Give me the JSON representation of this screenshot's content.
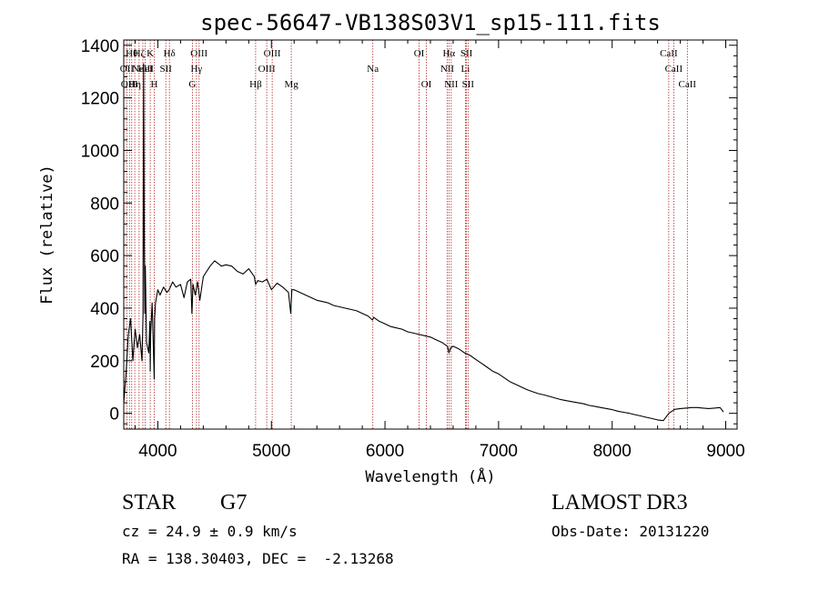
{
  "chart_data": {
    "type": "line",
    "title": "spec-56647-VB138S03V1_sp15-111.fits",
    "xlabel": "Wavelength (Å)",
    "ylabel": "Flux (relative)",
    "xlim": [
      3700,
      9100
    ],
    "ylim": [
      -60,
      1420
    ],
    "xticks": [
      4000,
      5000,
      6000,
      7000,
      8000,
      9000
    ],
    "xtick_labels": [
      "4000",
      "5000",
      "6000",
      "7000",
      "8000",
      "9000"
    ],
    "yticks": [
      0,
      200,
      400,
      600,
      800,
      1000,
      1200,
      1400
    ],
    "ytick_labels": [
      "0",
      "200",
      "400",
      "600",
      "800",
      "1000",
      "1200",
      "1400"
    ],
    "series": [
      {
        "name": "flux",
        "x": [
          3700,
          3720,
          3740,
          3760,
          3780,
          3800,
          3820,
          3840,
          3860,
          3870,
          3875,
          3880,
          3885,
          3890,
          3900,
          3920,
          3930,
          3933,
          3936,
          3950,
          3968,
          3972,
          3980,
          4000,
          4020,
          4050,
          4080,
          4100,
          4130,
          4160,
          4200,
          4230,
          4260,
          4290,
          4300,
          4310,
          4330,
          4350,
          4370,
          4400,
          4430,
          4460,
          4500,
          4530,
          4560,
          4600,
          4650,
          4700,
          4750,
          4800,
          4850,
          4861,
          4880,
          4920,
          4960,
          5000,
          5050,
          5100,
          5150,
          5170,
          5180,
          5200,
          5250,
          5300,
          5350,
          5400,
          5450,
          5500,
          5550,
          5600,
          5650,
          5700,
          5750,
          5800,
          5850,
          5890,
          5900,
          5950,
          6000,
          6050,
          6100,
          6150,
          6200,
          6250,
          6300,
          6350,
          6400,
          6450,
          6500,
          6550,
          6563,
          6580,
          6600,
          6650,
          6700,
          6750,
          6800,
          6850,
          6900,
          6950,
          7000,
          7050,
          7100,
          7150,
          7200,
          7250,
          7300,
          7350,
          7400,
          7450,
          7500,
          7550,
          7600,
          7650,
          7700,
          7750,
          7800,
          7850,
          7900,
          7950,
          8000,
          8050,
          8100,
          8150,
          8200,
          8250,
          8300,
          8350,
          8400,
          8450,
          8500,
          8550,
          8600,
          8650,
          8700,
          8750,
          8800,
          8850,
          8900,
          8950,
          8980
        ],
        "values": [
          40,
          150,
          300,
          360,
          200,
          320,
          250,
          300,
          200,
          380,
          1330,
          700,
          380,
          560,
          270,
          230,
          350,
          160,
          300,
          420,
          130,
          360,
          420,
          470,
          450,
          480,
          460,
          470,
          500,
          480,
          490,
          440,
          500,
          510,
          380,
          490,
          450,
          500,
          430,
          520,
          540,
          560,
          580,
          570,
          560,
          565,
          560,
          540,
          530,
          550,
          520,
          490,
          505,
          500,
          510,
          470,
          495,
          480,
          460,
          380,
          470,
          470,
          460,
          450,
          440,
          430,
          425,
          420,
          410,
          405,
          400,
          395,
          390,
          380,
          370,
          355,
          365,
          350,
          340,
          330,
          325,
          320,
          310,
          305,
          300,
          295,
          290,
          280,
          270,
          255,
          230,
          250,
          255,
          245,
          230,
          220,
          205,
          190,
          175,
          160,
          150,
          135,
          120,
          110,
          100,
          90,
          82,
          75,
          70,
          64,
          58,
          52,
          48,
          44,
          40,
          36,
          30,
          26,
          22,
          18,
          14,
          8,
          4,
          0,
          -5,
          -10,
          -15,
          -20,
          -25,
          -28,
          0,
          15,
          18,
          20,
          22,
          22,
          20,
          18,
          20,
          22,
          5
        ]
      }
    ],
    "lines": [
      {
        "wl": 3727,
        "label": "OII",
        "row": 1
      },
      {
        "wl": 3750,
        "label": "OIII",
        "row": 2
      },
      {
        "wl": 3770,
        "label": "Hθ",
        "row": 0
      },
      {
        "wl": 3797,
        "label": "Hη",
        "row": 2
      },
      {
        "wl": 3835,
        "label": "Hζ",
        "row": 0
      },
      {
        "wl": 3868,
        "label": "NeIII",
        "row": 1
      },
      {
        "wl": 3889,
        "label": "HeI",
        "row": 1
      },
      {
        "wl": 3933,
        "label": "K",
        "row": 0
      },
      {
        "wl": 3968,
        "label": "H",
        "row": 2
      },
      {
        "wl": 4070,
        "label": "SII",
        "row": 1
      },
      {
        "wl": 4102,
        "label": "Hδ",
        "row": 0
      },
      {
        "wl": 4304,
        "label": "G",
        "row": 2
      },
      {
        "wl": 4340,
        "label": "Hγ",
        "row": 1
      },
      {
        "wl": 4363,
        "label": "OIII",
        "row": 0
      },
      {
        "wl": 4861,
        "label": "Hβ",
        "row": 2
      },
      {
        "wl": 4959,
        "label": "OIII",
        "row": 1
      },
      {
        "wl": 5007,
        "label": "OIII",
        "row": 0
      },
      {
        "wl": 5175,
        "label": "Mg",
        "row": 2
      },
      {
        "wl": 5893,
        "label": "Na",
        "row": 1
      },
      {
        "wl": 6300,
        "label": "OI",
        "row": 0
      },
      {
        "wl": 6364,
        "label": "OI",
        "row": 2
      },
      {
        "wl": 6548,
        "label": "NII",
        "row": 1
      },
      {
        "wl": 6563,
        "label": "Hα",
        "row": 0
      },
      {
        "wl": 6583,
        "label": "NII",
        "row": 2
      },
      {
        "wl": 6708,
        "label": "Li",
        "row": 1
      },
      {
        "wl": 6717,
        "label": "SII",
        "row": 0
      },
      {
        "wl": 6731,
        "label": "SII",
        "row": 2
      },
      {
        "wl": 8498,
        "label": "CaII",
        "row": 0
      },
      {
        "wl": 8542,
        "label": "CaII",
        "row": 1
      },
      {
        "wl": 8662,
        "label": "CaII",
        "row": 2
      }
    ]
  },
  "info": {
    "class": "STAR",
    "subclass": "G7",
    "survey": "LAMOST DR3",
    "cz": "cz = 24.9 ± 0.9 km/s",
    "obs_date": "Obs-Date: 20131220",
    "coords": "RA = 138.30403, DEC =  -2.13268"
  }
}
